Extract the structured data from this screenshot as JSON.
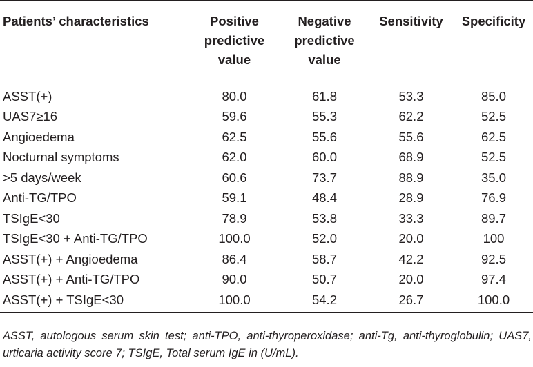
{
  "table": {
    "headers": [
      [
        "Patients’ characteristics"
      ],
      [
        "Positive",
        "predictive",
        "value"
      ],
      [
        "Negative",
        "predictive",
        "value"
      ],
      [
        "Sensitivity"
      ],
      [
        "Specificity"
      ]
    ],
    "rows": [
      [
        "ASST(+)",
        "80.0",
        "61.8",
        "53.3",
        "85.0"
      ],
      [
        "UAS7≥16",
        "59.6",
        "55.3",
        "62.2",
        "52.5"
      ],
      [
        "Angioedema",
        "62.5",
        "55.6",
        "55.6",
        "62.5"
      ],
      [
        "Nocturnal symptoms",
        "62.0",
        "60.0",
        "68.9",
        "52.5"
      ],
      [
        ">5 days/week",
        "60.6",
        "73.7",
        "88.9",
        "35.0"
      ],
      [
        "Anti-TG/TPO",
        "59.1",
        "48.4",
        "28.9",
        "76.9"
      ],
      [
        "TSIgE<30",
        "78.9",
        "53.8",
        "33.3",
        "89.7"
      ],
      [
        "TSIgE<30 + Anti-TG/TPO",
        "100.0",
        "52.0",
        "20.0",
        "100"
      ],
      [
        "ASST(+) + Angioedema",
        "86.4",
        "58.7",
        "42.2",
        "92.5"
      ],
      [
        "ASST(+) + Anti-TG/TPO",
        "90.0",
        "50.7",
        "20.0",
        "97.4"
      ],
      [
        "ASST(+) + TSIgE<30",
        "100.0",
        "54.2",
        "26.7",
        "100.0"
      ]
    ]
  },
  "footnote": "ASST, autologous serum skin test; anti-TPO, anti-thyroperoxidase; anti-Tg, anti-thyroglobulin; UAS7, urticaria activity score 7; TSIgE, Total serum IgE in (U/mL)."
}
